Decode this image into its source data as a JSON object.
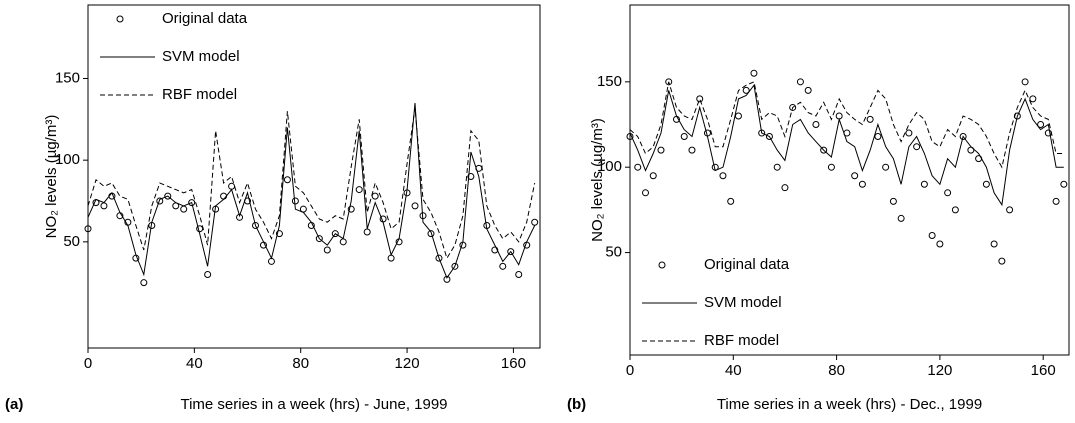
{
  "chart_data": [
    {
      "type": "line",
      "panel_label": "(a)",
      "xlabel": "Time series in a week (hrs) - June, 1999",
      "ylabel": "NO₂ levels (µg/m³)",
      "xlim": [
        0,
        170
      ],
      "ylim": [
        -15,
        195
      ],
      "xticks": [
        0,
        40,
        80,
        120,
        160
      ],
      "yticks": [
        50,
        100,
        150
      ],
      "legend": "upper left",
      "x": [
        0,
        3,
        6,
        9,
        12,
        15,
        18,
        21,
        24,
        27,
        30,
        33,
        36,
        39,
        42,
        45,
        48,
        51,
        54,
        57,
        60,
        63,
        66,
        69,
        72,
        75,
        78,
        81,
        84,
        87,
        90,
        93,
        96,
        99,
        102,
        105,
        108,
        111,
        114,
        117,
        120,
        123,
        126,
        129,
        132,
        135,
        138,
        141,
        144,
        147,
        150,
        153,
        156,
        159,
        162,
        165,
        168
      ],
      "series": [
        {
          "name": "Original data",
          "style": "scatter",
          "color": "#000000",
          "values": [
            58,
            74,
            72,
            78,
            66,
            62,
            40,
            25,
            60,
            75,
            78,
            72,
            70,
            74,
            58,
            30,
            70,
            78,
            84,
            65,
            75,
            60,
            48,
            38,
            55,
            88,
            75,
            70,
            60,
            52,
            45,
            55,
            50,
            70,
            82,
            56,
            78,
            64,
            40,
            50,
            80,
            72,
            66,
            55,
            40,
            27,
            35,
            48,
            90,
            95,
            60,
            45,
            35,
            44,
            30,
            48,
            62
          ]
        },
        {
          "name": "SVM model",
          "style": "solid",
          "color": "#000000",
          "values": [
            65,
            76,
            74,
            80,
            68,
            60,
            42,
            30,
            62,
            76,
            78,
            74,
            72,
            74,
            55,
            35,
            72,
            76,
            82,
            66,
            80,
            60,
            50,
            40,
            60,
            120,
            70,
            68,
            62,
            52,
            48,
            55,
            52,
            75,
            118,
            58,
            74,
            62,
            42,
            52,
            82,
            135,
            62,
            56,
            40,
            28,
            35,
            50,
            105,
            90,
            58,
            48,
            38,
            44,
            36,
            50,
            60
          ]
        },
        {
          "name": "RBF model",
          "style": "dashed",
          "color": "#000000",
          "values": [
            72,
            88,
            84,
            86,
            78,
            76,
            60,
            45,
            72,
            86,
            84,
            82,
            80,
            82,
            66,
            48,
            118,
            86,
            90,
            74,
            86,
            70,
            62,
            52,
            66,
            130,
            84,
            80,
            72,
            64,
            62,
            66,
            64,
            96,
            125,
            68,
            86,
            74,
            58,
            62,
            98,
            132,
            76,
            68,
            56,
            40,
            48,
            66,
            118,
            112,
            72,
            60,
            52,
            56,
            50,
            62,
            86
          ]
        }
      ]
    },
    {
      "type": "line",
      "panel_label": "(b)",
      "xlabel": "Time series in a week (hrs) - Dec., 1999",
      "ylabel": "NO₂ levels (µg/m³)",
      "xlim": [
        0,
        170
      ],
      "ylim": [
        -10,
        195
      ],
      "xticks": [
        0,
        40,
        80,
        120,
        160
      ],
      "yticks": [
        50,
        100,
        150
      ],
      "legend": "lower left",
      "x": [
        0,
        3,
        6,
        9,
        12,
        15,
        18,
        21,
        24,
        27,
        30,
        33,
        36,
        39,
        42,
        45,
        48,
        51,
        54,
        57,
        60,
        63,
        66,
        69,
        72,
        75,
        78,
        81,
        84,
        87,
        90,
        93,
        96,
        99,
        102,
        105,
        108,
        111,
        114,
        117,
        120,
        123,
        126,
        129,
        132,
        135,
        138,
        141,
        144,
        147,
        150,
        153,
        156,
        159,
        162,
        165,
        168
      ],
      "series": [
        {
          "name": "Original data",
          "style": "scatter",
          "color": "#000000",
          "values": [
            118,
            100,
            85,
            95,
            110,
            150,
            128,
            118,
            110,
            140,
            120,
            100,
            95,
            80,
            130,
            145,
            155,
            120,
            118,
            100,
            88,
            135,
            150,
            145,
            125,
            110,
            100,
            130,
            120,
            95,
            90,
            128,
            118,
            100,
            80,
            70,
            120,
            112,
            90,
            60,
            55,
            85,
            75,
            118,
            110,
            105,
            90,
            55,
            45,
            75,
            130,
            150,
            140,
            125,
            120,
            80,
            90
          ]
        },
        {
          "name": "SVM model",
          "style": "solid",
          "color": "#000000",
          "values": [
            120,
            110,
            98,
            108,
            120,
            145,
            130,
            122,
            118,
            135,
            118,
            98,
            100,
            118,
            140,
            142,
            148,
            120,
            118,
            110,
            104,
            125,
            128,
            120,
            115,
            110,
            106,
            128,
            115,
            112,
            98,
            110,
            125,
            112,
            105,
            90,
            112,
            118,
            108,
            95,
            90,
            105,
            100,
            118,
            112,
            108,
            100,
            85,
            78,
            110,
            130,
            140,
            128,
            122,
            125,
            100,
            100
          ]
        },
        {
          "name": "RBF model",
          "style": "dashed",
          "color": "#000000",
          "values": [
            122,
            118,
            108,
            112,
            125,
            150,
            135,
            130,
            128,
            140,
            128,
            112,
            112,
            128,
            145,
            148,
            150,
            128,
            132,
            130,
            118,
            135,
            138,
            132,
            130,
            138,
            128,
            140,
            132,
            128,
            125,
            135,
            145,
            140,
            125,
            115,
            125,
            132,
            128,
            115,
            112,
            122,
            118,
            130,
            128,
            125,
            118,
            108,
            100,
            120,
            135,
            145,
            135,
            130,
            128,
            108,
            108
          ]
        }
      ]
    }
  ]
}
